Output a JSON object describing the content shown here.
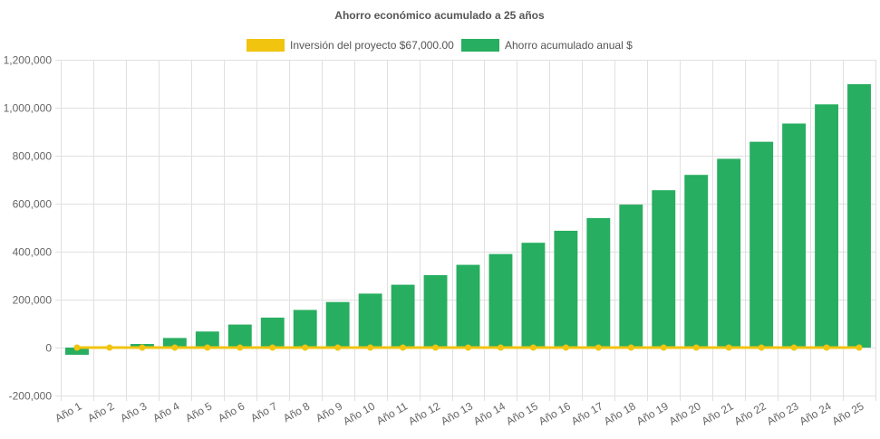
{
  "chart_data": {
    "type": "bar",
    "title": "Ahorro económico acumulado a 25 años",
    "categories": [
      "Año 1",
      "Año 2",
      "Año 3",
      "Año 4",
      "Año 5",
      "Año 6",
      "Año 7",
      "Año 8",
      "Año 9",
      "Año 10",
      "Año 11",
      "Año 12",
      "Año 13",
      "Año 14",
      "Año 15",
      "Año 16",
      "Año 17",
      "Año 18",
      "Año 19",
      "Año 20",
      "Año 21",
      "Año 22",
      "Año 23",
      "Año 24",
      "Año 25"
    ],
    "series": [
      {
        "name": "Inversión del proyecto $67,000.00",
        "type": "line",
        "color": "#f1c40f",
        "values": [
          0,
          0,
          0,
          0,
          0,
          0,
          0,
          0,
          0,
          0,
          0,
          0,
          0,
          0,
          0,
          0,
          0,
          0,
          0,
          0,
          0,
          0,
          0,
          0,
          0
        ]
      },
      {
        "name": "Ahorro acumulado anual $",
        "type": "bar",
        "color": "#27ae60",
        "values": [
          -30000,
          -3000,
          15000,
          40000,
          67000,
          96000,
          125000,
          157000,
          190000,
          225000,
          262000,
          302000,
          345000,
          390000,
          437000,
          487000,
          540000,
          596000,
          656000,
          720000,
          787000,
          858000,
          934000,
          1014000,
          1098000
        ]
      }
    ],
    "ylim": [
      -200000,
      1200000
    ],
    "yticks": [
      "1,200,000",
      "1,000,000",
      "800,000",
      "600,000",
      "400,000",
      "200,000",
      "0",
      "-200,000"
    ],
    "ytick_values": [
      1200000,
      1000000,
      800000,
      600000,
      400000,
      200000,
      0,
      -200000
    ],
    "grid": true,
    "legend_position": "top"
  }
}
